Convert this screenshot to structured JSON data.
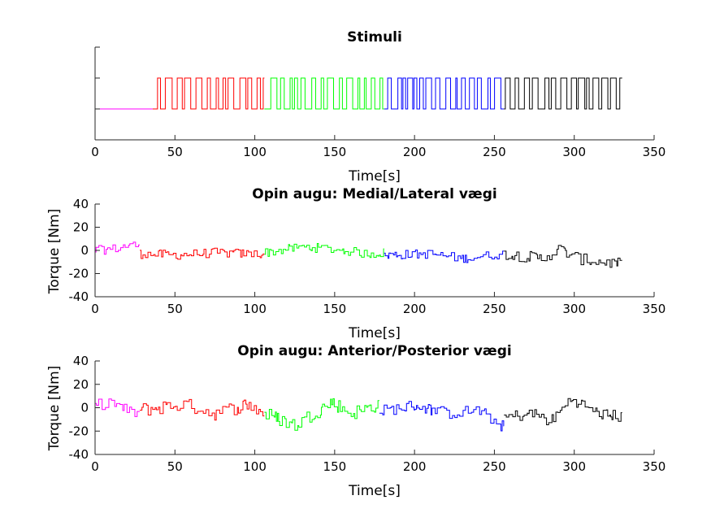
{
  "chart_data": [
    {
      "type": "line",
      "title": "Stimuli",
      "xlabel": "Time[s]",
      "ylabel": "",
      "xlim": [
        0,
        350
      ],
      "ylim": [
        -1,
        2
      ],
      "xticks": [
        0,
        50,
        100,
        150,
        200,
        250,
        300,
        350
      ],
      "xtick_labels": [
        "0",
        "50",
        "100",
        "150",
        "200",
        "250",
        "300",
        "350"
      ],
      "yticks": [
        -1,
        0,
        1,
        2
      ],
      "ytick_labels": [
        "",
        "",
        "",
        ""
      ],
      "grid": false,
      "series": [
        {
          "color": "#ff00ff",
          "segment": [
            0,
            36
          ],
          "kind": "stimulus"
        },
        {
          "color": "#ff0000",
          "segment": [
            36,
            106
          ],
          "kind": "stimulus"
        },
        {
          "color": "#00ff00",
          "segment": [
            106,
            181
          ],
          "kind": "stimulus"
        },
        {
          "color": "#0000ff",
          "segment": [
            181,
            256
          ],
          "kind": "stimulus"
        },
        {
          "color": "#000000",
          "segment": [
            256,
            330
          ],
          "kind": "stimulus"
        }
      ],
      "levels": [
        0,
        1
      ]
    },
    {
      "type": "line",
      "title": "Opin augu: Medial/Lateral vægi",
      "xlabel": "Time[s]",
      "ylabel": "Torque [Nm]",
      "xlim": [
        0,
        350
      ],
      "ylim": [
        -40,
        40
      ],
      "xticks": [
        0,
        50,
        100,
        150,
        200,
        250,
        300,
        350
      ],
      "xtick_labels": [
        "0",
        "50",
        "100",
        "150",
        "200",
        "250",
        "300",
        "350"
      ],
      "yticks": [
        -40,
        -20,
        0,
        20,
        40
      ],
      "ytick_labels": [
        "-40",
        "-20",
        "0",
        "20",
        "40"
      ],
      "grid": false,
      "series": [
        {
          "color": "#ff00ff",
          "segment": [
            0,
            28
          ],
          "anchors": [
            [
              0,
              0
            ],
            [
              10,
              1
            ],
            [
              20,
              4
            ],
            [
              28,
              5
            ]
          ],
          "noise": 4
        },
        {
          "color": "#ff0000",
          "segment": [
            28,
            106
          ],
          "anchors": [
            [
              28,
              -3
            ],
            [
              50,
              -4
            ],
            [
              75,
              -2
            ],
            [
              95,
              -3
            ],
            [
              106,
              -3
            ]
          ],
          "noise": 4
        },
        {
          "color": "#00ff00",
          "segment": [
            106,
            181
          ],
          "anchors": [
            [
              106,
              -2
            ],
            [
              130,
              3
            ],
            [
              150,
              1
            ],
            [
              170,
              -3
            ],
            [
              181,
              -2
            ]
          ],
          "noise": 4
        },
        {
          "color": "#0000ff",
          "segment": [
            181,
            256
          ],
          "anchors": [
            [
              181,
              -4
            ],
            [
              210,
              -3
            ],
            [
              230,
              -7
            ],
            [
              256,
              -3
            ]
          ],
          "noise": 4
        },
        {
          "color": "#000000",
          "segment": [
            256,
            330
          ],
          "anchors": [
            [
              256,
              -3
            ],
            [
              280,
              -7
            ],
            [
              290,
              1
            ],
            [
              305,
              -8
            ],
            [
              330,
              -12
            ]
          ],
          "noise": 5
        }
      ]
    },
    {
      "type": "line",
      "title": "Opin augu: Anterior/Posterior vægi",
      "xlabel": "Time[s]",
      "ylabel": "Torque [Nm]",
      "xlim": [
        0,
        350
      ],
      "ylim": [
        -40,
        40
      ],
      "xticks": [
        0,
        50,
        100,
        150,
        200,
        250,
        300,
        350
      ],
      "xtick_labels": [
        "0",
        "50",
        "100",
        "150",
        "200",
        "250",
        "300",
        "350"
      ],
      "yticks": [
        -40,
        -20,
        0,
        20,
        40
      ],
      "ytick_labels": [
        "-40",
        "-20",
        "0",
        "20",
        "40"
      ],
      "grid": false,
      "series": [
        {
          "color": "#ff00ff",
          "segment": [
            0,
            28
          ],
          "anchors": [
            [
              0,
              2
            ],
            [
              10,
              5
            ],
            [
              20,
              -3
            ],
            [
              28,
              -5
            ]
          ],
          "noise": 5
        },
        {
          "color": "#ff0000",
          "segment": [
            28,
            106
          ],
          "anchors": [
            [
              28,
              -2
            ],
            [
              55,
              3
            ],
            [
              75,
              -5
            ],
            [
              95,
              3
            ],
            [
              106,
              -5
            ]
          ],
          "noise": 6
        },
        {
          "color": "#00ff00",
          "segment": [
            106,
            178
          ],
          "anchors": [
            [
              106,
              -5
            ],
            [
              125,
              -15
            ],
            [
              148,
              5
            ],
            [
              160,
              -5
            ],
            [
              178,
              3
            ]
          ],
          "noise": 6
        },
        {
          "color": "#0000ff",
          "segment": [
            178,
            256
          ],
          "anchors": [
            [
              178,
              -3
            ],
            [
              200,
              2
            ],
            [
              220,
              -5
            ],
            [
              240,
              -2
            ],
            [
              256,
              -17
            ]
          ],
          "noise": 5
        },
        {
          "color": "#000000",
          "segment": [
            256,
            330
          ],
          "anchors": [
            [
              256,
              -8
            ],
            [
              275,
              -5
            ],
            [
              285,
              -12
            ],
            [
              298,
              8
            ],
            [
              315,
              -5
            ],
            [
              330,
              -8
            ]
          ],
          "noise": 5
        }
      ]
    }
  ]
}
